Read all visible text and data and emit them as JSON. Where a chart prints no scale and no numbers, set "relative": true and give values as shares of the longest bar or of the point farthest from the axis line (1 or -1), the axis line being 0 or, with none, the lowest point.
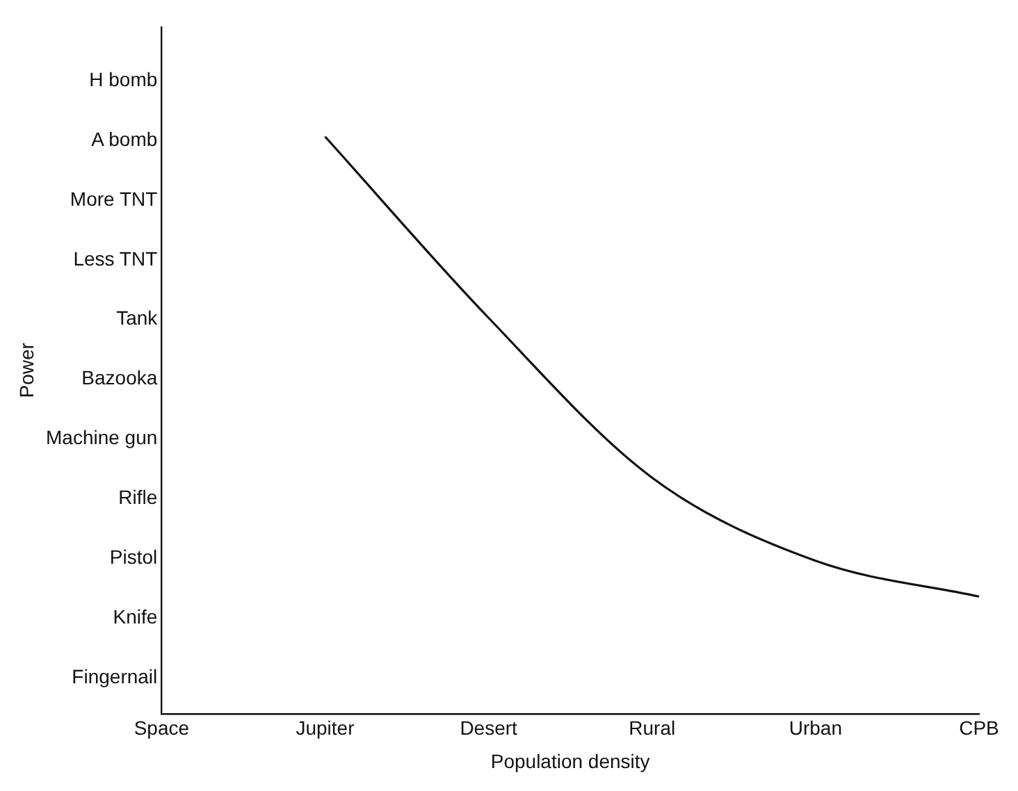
{
  "chart_data": {
    "type": "line",
    "xlabel": "Population density",
    "annotations": [
      "Power"
    ],
    "relative": true,
    "categories": [
      "Space",
      "Jupiter",
      "Desert",
      "Rural",
      "Urban",
      "CPB"
    ],
    "y_categories": [
      "H bomb",
      "A bomb",
      "More TNT",
      "Less TNT",
      "Tank",
      "Bazooka",
      "Machine gun",
      "Rifle",
      "Pistol",
      "Knife",
      "Fingernail"
    ],
    "series": [
      {
        "color": "#111111",
        "values": [
          null,
          1,
          0.686,
          0.409,
          0.265,
          0.203
        ]
      }
    ],
    "grid": false,
    "marker": "none"
  }
}
